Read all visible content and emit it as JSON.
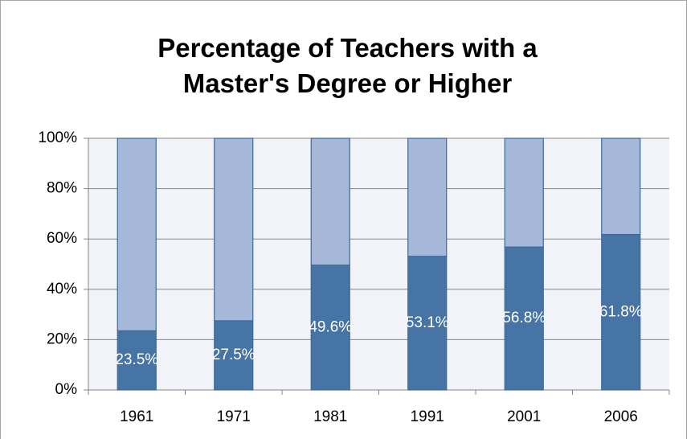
{
  "chart_data": {
    "type": "stacked_bar",
    "title": "Percentage of Teachers with a Master's Degree or Higher",
    "categories": [
      "1961",
      "1971",
      "1981",
      "1991",
      "2001",
      "2006"
    ],
    "series": [
      {
        "color": "#4674a4",
        "values": [
          23.5,
          27.5,
          49.6,
          53.1,
          56.8,
          61.8
        ],
        "value_labels": [
          "23.5%",
          "27.5%",
          "49.6%",
          "53.1%",
          "56.8%",
          "61.8%"
        ]
      },
      {
        "color": "#a5b8da",
        "values": [
          76.5,
          72.5,
          50.4,
          46.9,
          43.2,
          38.2
        ]
      }
    ],
    "ylim": [
      0,
      100
    ],
    "yticks": [
      {
        "value": 0,
        "label": "0%"
      },
      {
        "value": 20,
        "label": "20%"
      },
      {
        "value": 40,
        "label": "40%"
      },
      {
        "value": 60,
        "label": "60%"
      },
      {
        "value": 80,
        "label": "80%"
      },
      {
        "value": 100,
        "label": "100%"
      }
    ],
    "grid": true
  }
}
